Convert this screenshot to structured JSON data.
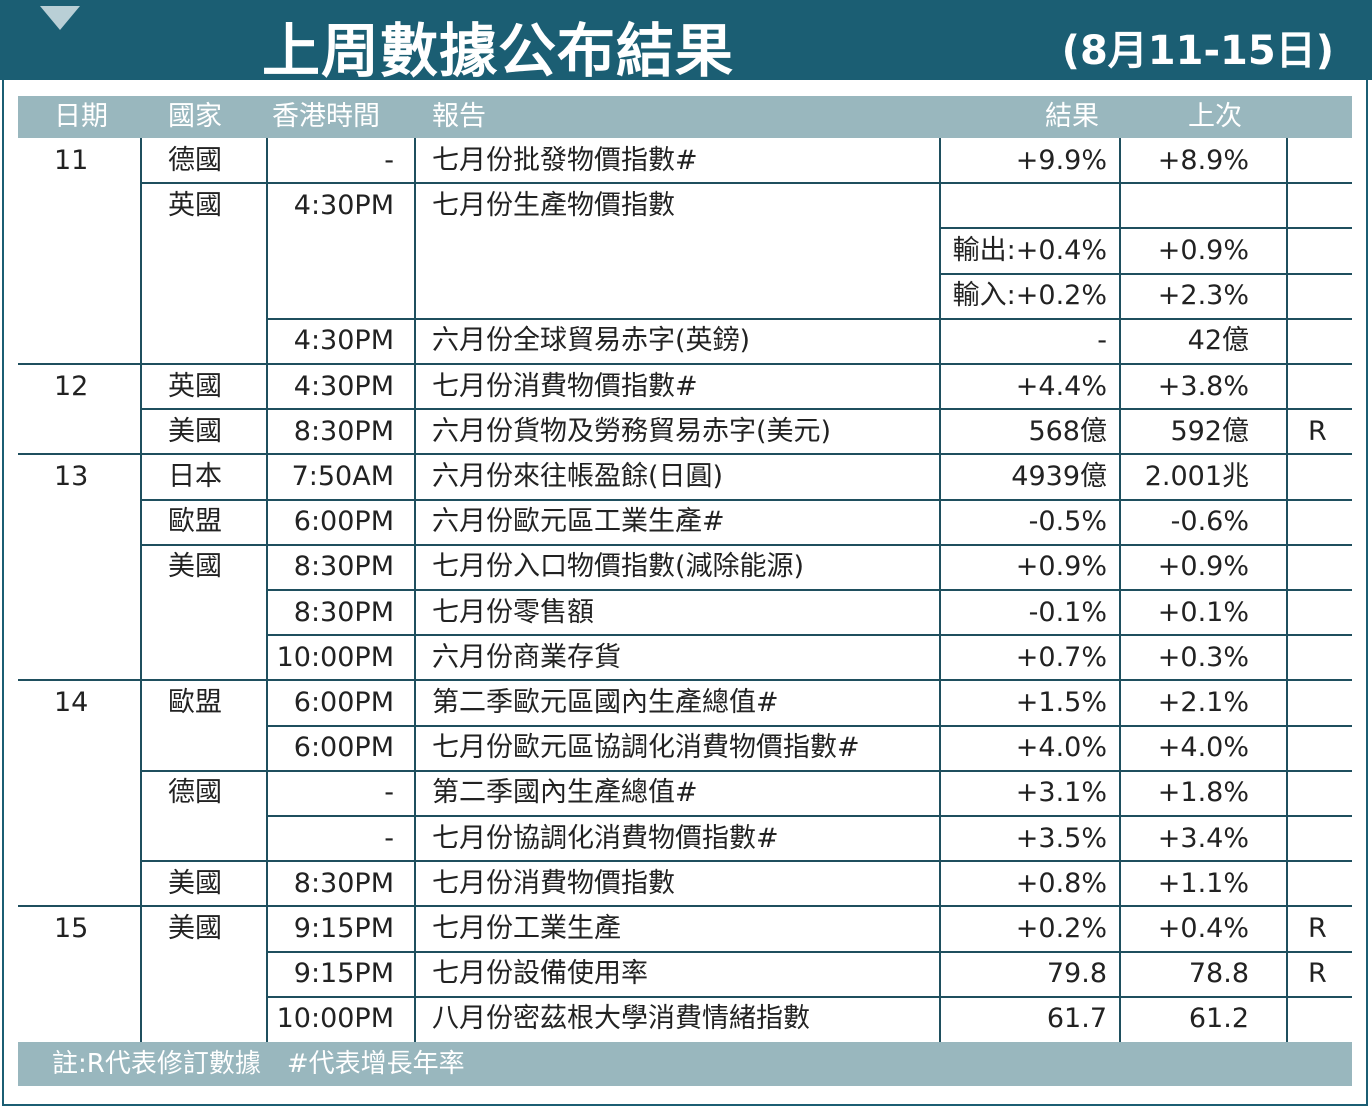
{
  "title": "上周數據公布結果",
  "date_range": "(8月11-15日)",
  "headers": {
    "date": "日期",
    "country": "國家",
    "time": "香港時間",
    "report": "報告",
    "result": "結果",
    "previous": "上次"
  },
  "footnote": "註:R代表修訂數據　#代表增長年率",
  "rows": [
    {
      "date": "11",
      "country": "德國",
      "time": "-",
      "report": "七月份批發物價指數#",
      "result": "+9.9%",
      "previous": "+8.9%",
      "flag": ""
    },
    {
      "date": "",
      "country": "英國",
      "time": "4:30PM",
      "report": "七月份生產物價指數",
      "result": "",
      "previous": "",
      "flag": ""
    },
    {
      "date": "",
      "country": "",
      "time": "",
      "report": "",
      "result": "輸出:+0.4%",
      "previous": "+0.9%",
      "flag": ""
    },
    {
      "date": "",
      "country": "",
      "time": "",
      "report": "",
      "result": "輸入:+0.2%",
      "previous": "+2.3%",
      "flag": ""
    },
    {
      "date": "",
      "country": "",
      "time": "4:30PM",
      "report": "六月份全球貿易赤字(英鎊)",
      "result": "-",
      "previous": "42億",
      "flag": ""
    },
    {
      "date": "12",
      "country": "英國",
      "time": "4:30PM",
      "report": "七月份消費物價指數#",
      "result": "+4.4%",
      "previous": "+3.8%",
      "flag": ""
    },
    {
      "date": "",
      "country": "美國",
      "time": "8:30PM",
      "report": "六月份貨物及勞務貿易赤字(美元)",
      "result": "568億",
      "previous": "592億",
      "flag": "R"
    },
    {
      "date": "13",
      "country": "日本",
      "time": "7:50AM",
      "report": "六月份來往帳盈餘(日圓)",
      "result": "4939億",
      "previous": "2.001兆",
      "flag": ""
    },
    {
      "date": "",
      "country": "歐盟",
      "time": "6:00PM",
      "report": "六月份歐元區工業生產#",
      "result": "-0.5%",
      "previous": "-0.6%",
      "flag": ""
    },
    {
      "date": "",
      "country": "美國",
      "time": "8:30PM",
      "report": "七月份入口物價指數(減除能源)",
      "result": "+0.9%",
      "previous": "+0.9%",
      "flag": ""
    },
    {
      "date": "",
      "country": "",
      "time": "8:30PM",
      "report": "七月份零售額",
      "result": "-0.1%",
      "previous": "+0.1%",
      "flag": ""
    },
    {
      "date": "",
      "country": "",
      "time": "10:00PM",
      "report": "六月份商業存貨",
      "result": "+0.7%",
      "previous": "+0.3%",
      "flag": ""
    },
    {
      "date": "14",
      "country": "歐盟",
      "time": "6:00PM",
      "report": "第二季歐元區國內生產總值#",
      "result": "+1.5%",
      "previous": "+2.1%",
      "flag": ""
    },
    {
      "date": "",
      "country": "",
      "time": "6:00PM",
      "report": "七月份歐元區協調化消費物價指數#",
      "result": "+4.0%",
      "previous": "+4.0%",
      "flag": ""
    },
    {
      "date": "",
      "country": "德國",
      "time": "-",
      "report": "第二季國內生產總值#",
      "result": "+3.1%",
      "previous": "+1.8%",
      "flag": ""
    },
    {
      "date": "",
      "country": "",
      "time": "-",
      "report": "七月份協調化消費物價指數#",
      "result": "+3.5%",
      "previous": "+3.4%",
      "flag": ""
    },
    {
      "date": "",
      "country": "美國",
      "time": "8:30PM",
      "report": "七月份消費物價指數",
      "result": "+0.8%",
      "previous": "+1.1%",
      "flag": ""
    },
    {
      "date": "15",
      "country": "美國",
      "time": "9:15PM",
      "report": "七月份工業生產",
      "result": "+0.2%",
      "previous": "+0.4%",
      "flag": "R"
    },
    {
      "date": "",
      "country": "",
      "time": "9:15PM",
      "report": "七月份設備使用率",
      "result": "79.8",
      "previous": "78.8",
      "flag": "R"
    },
    {
      "date": "",
      "country": "",
      "time": "10:00PM",
      "report": "八月份密茲根大學消費情緒指數",
      "result": "61.7",
      "previous": "61.2",
      "flag": ""
    }
  ]
}
